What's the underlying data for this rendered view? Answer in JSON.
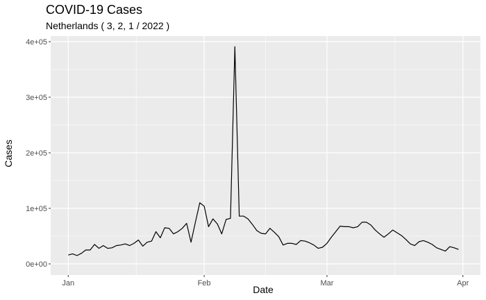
{
  "chart_data": {
    "type": "line",
    "title": "COVID-19 Cases",
    "subtitle": "Netherlands  ( 3, 2, 1 / 2022 )",
    "xlabel": "Date",
    "ylabel": "Cases",
    "xlim": [
      "2021-12-28",
      "2022-04-05"
    ],
    "ylim": [
      -20000,
      410000
    ],
    "x_ticks": [
      {
        "date": "2022-01-01",
        "label": "Jan"
      },
      {
        "date": "2022-02-01",
        "label": "Feb"
      },
      {
        "date": "2022-03-01",
        "label": "Mar"
      },
      {
        "date": "2022-04-01",
        "label": "Apr"
      }
    ],
    "y_ticks": [
      {
        "value": 0,
        "label": "0e+00"
      },
      {
        "value": 100000,
        "label": "1e+05"
      },
      {
        "value": 200000,
        "label": "2e+05"
      },
      {
        "value": 300000,
        "label": "3e+05"
      },
      {
        "value": 400000,
        "label": "4e+05"
      }
    ],
    "grid": true,
    "line_color": "#000000",
    "panel_color": "#ebebeb",
    "series": [
      {
        "x": [
          "2022-01-01",
          "2022-01-02",
          "2022-01-03",
          "2022-01-04",
          "2022-01-05",
          "2022-01-06",
          "2022-01-07",
          "2022-01-08",
          "2022-01-09",
          "2022-01-10",
          "2022-01-11",
          "2022-01-12",
          "2022-01-13",
          "2022-01-14",
          "2022-01-15",
          "2022-01-16",
          "2022-01-17",
          "2022-01-18",
          "2022-01-19",
          "2022-01-20",
          "2022-01-21",
          "2022-01-22",
          "2022-01-23",
          "2022-01-24",
          "2022-01-25",
          "2022-01-26",
          "2022-01-27",
          "2022-01-28",
          "2022-01-29",
          "2022-01-30",
          "2022-01-31",
          "2022-02-01",
          "2022-02-02",
          "2022-02-03",
          "2022-02-04",
          "2022-02-05",
          "2022-02-06",
          "2022-02-07",
          "2022-02-08",
          "2022-02-09",
          "2022-02-10",
          "2022-02-11",
          "2022-02-12",
          "2022-02-13",
          "2022-02-14",
          "2022-02-15",
          "2022-02-16",
          "2022-02-17",
          "2022-02-18",
          "2022-02-19",
          "2022-02-20",
          "2022-02-21",
          "2022-02-22",
          "2022-02-23",
          "2022-02-24",
          "2022-02-25",
          "2022-02-26",
          "2022-02-27",
          "2022-02-28",
          "2022-03-01",
          "2022-03-02",
          "2022-03-03",
          "2022-03-04",
          "2022-03-05",
          "2022-03-06",
          "2022-03-07",
          "2022-03-08",
          "2022-03-09",
          "2022-03-10",
          "2022-03-11",
          "2022-03-12",
          "2022-03-13",
          "2022-03-14",
          "2022-03-15",
          "2022-03-16",
          "2022-03-17",
          "2022-03-18",
          "2022-03-19",
          "2022-03-20",
          "2022-03-21",
          "2022-03-22",
          "2022-03-23",
          "2022-03-24",
          "2022-03-25",
          "2022-03-26",
          "2022-03-27",
          "2022-03-28",
          "2022-03-29",
          "2022-03-30",
          "2022-03-31"
        ],
        "y": [
          16000,
          18000,
          15000,
          19000,
          25000,
          25000,
          35000,
          28000,
          33000,
          28000,
          29000,
          33000,
          34000,
          36000,
          33000,
          37000,
          43000,
          32000,
          39000,
          41000,
          58000,
          47000,
          65000,
          64000,
          54000,
          58000,
          64000,
          73000,
          39000,
          75000,
          110000,
          104000,
          67000,
          81000,
          72000,
          54000,
          80000,
          82000,
          391000,
          86000,
          86000,
          81000,
          71000,
          60000,
          55000,
          54000,
          64000,
          57000,
          49000,
          34000,
          37000,
          37000,
          35000,
          42000,
          41000,
          38000,
          34000,
          28000,
          30000,
          37000,
          48000,
          58000,
          68000,
          67000,
          67000,
          65000,
          67000,
          75000,
          75000,
          70000,
          61000,
          54000,
          48000,
          54000,
          61000,
          56000,
          51000,
          44000,
          36000,
          33000,
          40000,
          42000,
          39000,
          35000,
          29000,
          26000,
          23000,
          31000,
          29000,
          26000
        ]
      }
    ]
  }
}
